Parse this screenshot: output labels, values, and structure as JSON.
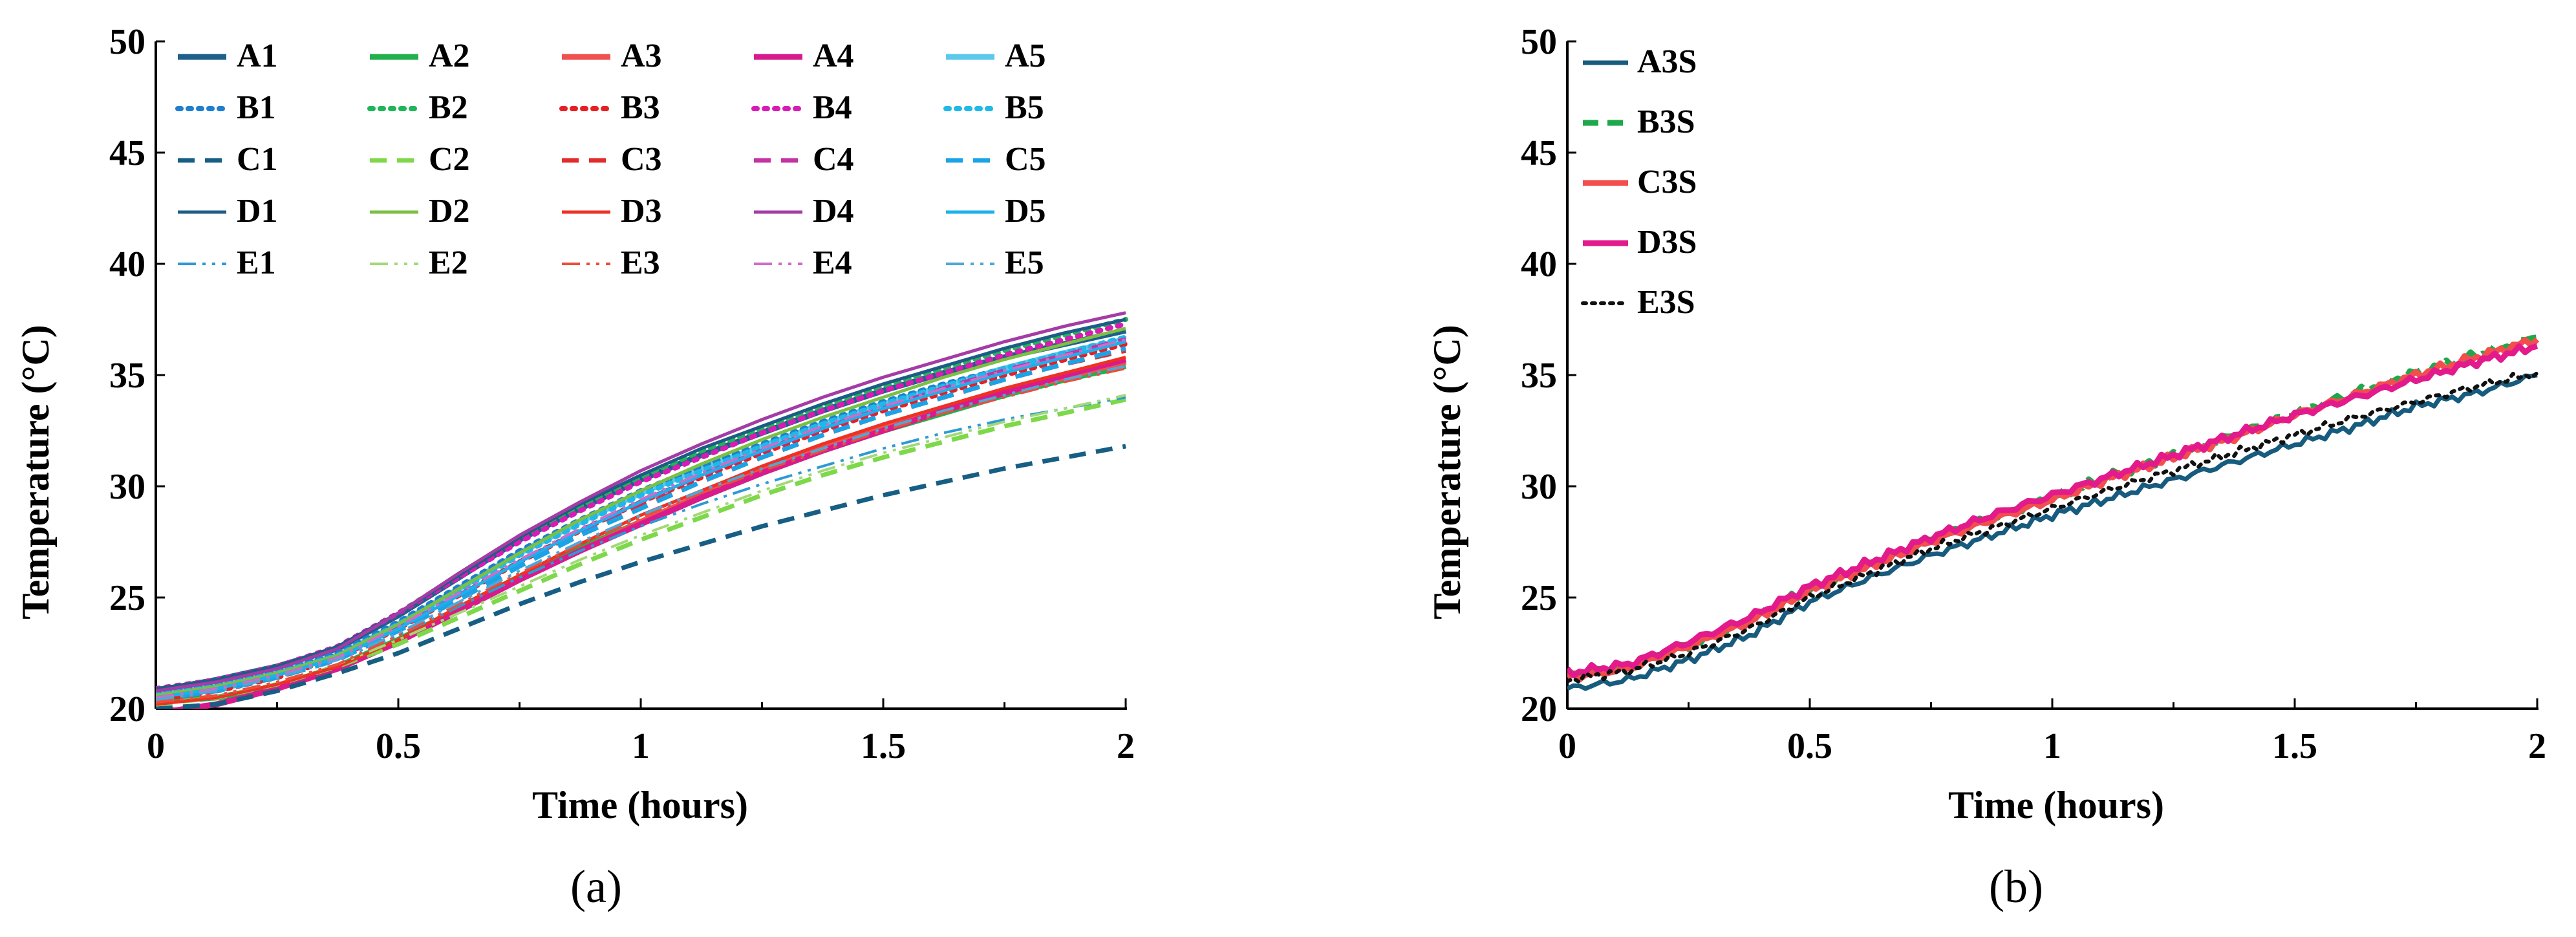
{
  "colors": {
    "A": [
      "#1F5F8B",
      "#22B04C",
      "#F0514E",
      "#D81B8C",
      "#5BC8EC"
    ],
    "B": [
      "#1E7FD0",
      "#1FB559",
      "#E81E25",
      "#D81BB5",
      "#1EB9E8"
    ],
    "C": [
      "#175E84",
      "#7DD84A",
      "#E32B2B",
      "#C432A3",
      "#1CA3E6"
    ],
    "D": [
      "#1E5C86",
      "#7BC043",
      "#EE3124",
      "#A43CA5",
      "#1AB2EA"
    ],
    "E": [
      "#2E9AD4",
      "#A2D977",
      "#EA4E3C",
      "#D06BC9",
      "#4EA8D8"
    ],
    "S": [
      "#175C7E",
      "#1FA84B",
      "#F24E4E",
      "#E31A8C",
      "#111111"
    ]
  },
  "panels": {
    "a": {
      "label": "(a)"
    },
    "b": {
      "label": "(b)"
    }
  },
  "chart_data": [
    {
      "type": "line",
      "panel": "a",
      "xlabel": "Time (hours)",
      "ylabel": "Temperature (°C)",
      "xlim": [
        0,
        2
      ],
      "ylim": [
        20,
        50
      ],
      "xticks": [
        0,
        0.5,
        1,
        1.5,
        2
      ],
      "xtick_labels": [
        "0",
        "0.5",
        "1",
        "1.5",
        "2"
      ],
      "yticks": [
        20,
        25,
        30,
        35,
        40,
        45,
        50
      ],
      "ytick_labels": [
        "20",
        "25",
        "30",
        "35",
        "40",
        "45",
        "50"
      ],
      "legend_position": "top-left",
      "x": [
        0,
        0.125,
        0.25,
        0.375,
        0.5,
        0.625,
        0.75,
        0.875,
        1,
        1.125,
        1.25,
        1.375,
        1.5,
        1.625,
        1.75,
        1.875,
        2
      ],
      "series": [
        {
          "name": "A1",
          "values": [
            20.8,
            21.3,
            21.9,
            22.7,
            24.2,
            25.9,
            27.6,
            29.0,
            30.3,
            31.4,
            32.4,
            33.4,
            34.3,
            35.1,
            35.8,
            36.4,
            37.0
          ]
        },
        {
          "name": "A2",
          "values": [
            20.3,
            20.5,
            21.0,
            21.9,
            23.1,
            24.5,
            25.9,
            27.2,
            28.4,
            29.5,
            30.6,
            31.6,
            32.5,
            33.3,
            34.1,
            34.8,
            35.4
          ]
        },
        {
          "name": "A3",
          "values": [
            19.8,
            20.2,
            20.9,
            21.8,
            23.0,
            24.4,
            25.8,
            27.1,
            28.4,
            29.6,
            30.7,
            31.7,
            32.6,
            33.4,
            34.2,
            34.9,
            35.6
          ]
        },
        {
          "name": "A4",
          "values": [
            19.8,
            20.2,
            20.9,
            21.8,
            23.0,
            24.4,
            25.8,
            27.1,
            28.3,
            29.5,
            30.6,
            31.6,
            32.5,
            33.4,
            34.2,
            35.0,
            35.7
          ]
        },
        {
          "name": "A5",
          "values": [
            20.6,
            21.0,
            21.6,
            22.4,
            23.8,
            25.4,
            27.0,
            28.4,
            29.7,
            30.8,
            31.8,
            32.8,
            33.7,
            34.5,
            35.3,
            36.0,
            36.6
          ]
        },
        {
          "name": "B1",
          "values": [
            20.7,
            21.1,
            21.7,
            22.5,
            23.9,
            25.5,
            27.1,
            28.5,
            29.8,
            30.9,
            31.9,
            32.9,
            33.8,
            34.6,
            35.3,
            36.0,
            36.7
          ]
        },
        {
          "name": "B2",
          "values": [
            20.9,
            21.3,
            21.9,
            22.8,
            24.3,
            26.0,
            27.7,
            29.1,
            30.4,
            31.6,
            32.6,
            33.6,
            34.5,
            35.3,
            36.1,
            36.8,
            37.5
          ]
        },
        {
          "name": "B3",
          "values": [
            20.4,
            20.8,
            21.4,
            22.3,
            23.6,
            25.1,
            26.6,
            28.0,
            29.3,
            30.4,
            31.5,
            32.5,
            33.4,
            34.2,
            35.0,
            35.7,
            36.4
          ]
        },
        {
          "name": "B4",
          "values": [
            20.9,
            21.3,
            21.9,
            22.8,
            24.3,
            25.9,
            27.5,
            28.9,
            30.2,
            31.3,
            32.4,
            33.4,
            34.3,
            35.1,
            35.9,
            36.6,
            37.3
          ]
        },
        {
          "name": "B5",
          "values": [
            20.6,
            21.0,
            21.6,
            22.4,
            23.8,
            25.3,
            26.9,
            28.3,
            29.6,
            30.7,
            31.8,
            32.8,
            33.7,
            34.5,
            35.3,
            36.0,
            36.7
          ]
        },
        {
          "name": "C1",
          "values": [
            20.0,
            20.2,
            20.8,
            21.6,
            22.5,
            23.6,
            24.7,
            25.7,
            26.6,
            27.4,
            28.2,
            28.9,
            29.6,
            30.2,
            30.8,
            31.3,
            31.8
          ]
        },
        {
          "name": "C2",
          "values": [
            20.2,
            20.5,
            21.1,
            21.9,
            22.9,
            24.1,
            25.3,
            26.5,
            27.6,
            28.6,
            29.6,
            30.5,
            31.3,
            32.0,
            32.7,
            33.3,
            33.9
          ]
        },
        {
          "name": "C3",
          "values": [
            20.4,
            20.8,
            21.4,
            22.2,
            23.5,
            25.0,
            26.5,
            27.9,
            29.1,
            30.2,
            31.3,
            32.3,
            33.2,
            34.0,
            34.8,
            35.5,
            36.1
          ]
        },
        {
          "name": "C4",
          "values": [
            20.5,
            20.9,
            21.5,
            22.3,
            23.6,
            25.1,
            26.6,
            28.0,
            29.3,
            30.5,
            31.6,
            32.6,
            33.5,
            34.4,
            35.2,
            35.9,
            36.6
          ]
        },
        {
          "name": "C5",
          "values": [
            20.4,
            20.8,
            21.4,
            22.2,
            23.5,
            24.9,
            26.4,
            27.8,
            29.0,
            30.2,
            31.3,
            32.3,
            33.2,
            34.0,
            34.8,
            35.5,
            36.2
          ]
        },
        {
          "name": "D1",
          "values": [
            20.9,
            21.3,
            21.9,
            22.8,
            24.3,
            26.0,
            27.7,
            29.2,
            30.5,
            31.7,
            32.7,
            33.7,
            34.6,
            35.4,
            36.2,
            36.9,
            37.5
          ]
        },
        {
          "name": "D2",
          "values": [
            20.6,
            21.0,
            21.6,
            22.4,
            23.8,
            25.4,
            27.0,
            28.5,
            29.8,
            31.0,
            32.1,
            33.1,
            34.0,
            34.9,
            35.7,
            36.4,
            37.1
          ]
        },
        {
          "name": "D3",
          "values": [
            20.2,
            20.5,
            21.1,
            21.9,
            23.1,
            24.6,
            26.0,
            27.4,
            28.7,
            29.8,
            30.9,
            31.9,
            32.8,
            33.6,
            34.4,
            35.1,
            35.8
          ]
        },
        {
          "name": "D4",
          "values": [
            20.8,
            21.2,
            21.8,
            22.7,
            24.3,
            26.1,
            27.8,
            29.3,
            30.7,
            31.9,
            33.0,
            34.0,
            34.9,
            35.7,
            36.5,
            37.2,
            37.8
          ]
        },
        {
          "name": "D5",
          "values": [
            20.5,
            20.9,
            21.5,
            22.3,
            23.6,
            25.1,
            26.6,
            28.0,
            29.3,
            30.5,
            31.6,
            32.6,
            33.5,
            34.3,
            35.1,
            35.8,
            36.5
          ]
        },
        {
          "name": "E1",
          "values": [
            20.4,
            20.8,
            21.4,
            22.2,
            23.3,
            24.6,
            25.9,
            27.1,
            28.2,
            29.2,
            30.1,
            30.9,
            31.7,
            32.4,
            33.0,
            33.5,
            34.0
          ]
        },
        {
          "name": "E2",
          "values": [
            20.3,
            20.6,
            21.2,
            22.0,
            23.1,
            24.3,
            25.5,
            26.7,
            27.8,
            28.8,
            29.8,
            30.7,
            31.5,
            32.2,
            32.9,
            33.5,
            34.1
          ]
        },
        {
          "name": "E3",
          "values": [
            20.3,
            20.6,
            21.2,
            22.0,
            23.3,
            24.7,
            26.1,
            27.4,
            28.6,
            29.7,
            30.7,
            31.6,
            32.5,
            33.3,
            34.0,
            34.7,
            35.3
          ]
        },
        {
          "name": "E4",
          "values": [
            20.5,
            20.9,
            21.5,
            22.3,
            23.7,
            25.2,
            26.7,
            28.1,
            29.4,
            30.6,
            31.7,
            32.7,
            33.6,
            34.4,
            35.2,
            35.9,
            36.6
          ]
        },
        {
          "name": "E5",
          "values": [
            20.4,
            20.8,
            21.4,
            22.2,
            23.4,
            24.8,
            26.2,
            27.5,
            28.7,
            29.8,
            30.8,
            31.7,
            32.6,
            33.4,
            34.1,
            34.8,
            35.4
          ]
        }
      ]
    },
    {
      "type": "line",
      "panel": "b",
      "xlabel": "Time (hours)",
      "ylabel": "Temperature (°C)",
      "xlim": [
        0,
        2
      ],
      "ylim": [
        20,
        50
      ],
      "xticks": [
        0,
        0.5,
        1,
        1.5,
        2
      ],
      "xtick_labels": [
        "0",
        "0.5",
        "1",
        "1.5",
        "2"
      ],
      "yticks": [
        20,
        25,
        30,
        35,
        40,
        45,
        50
      ],
      "ytick_labels": [
        "20",
        "25",
        "30",
        "35",
        "40",
        "45",
        "50"
      ],
      "legend_position": "top-left",
      "x": [
        0,
        0.125,
        0.25,
        0.375,
        0.5,
        0.625,
        0.75,
        0.875,
        1,
        1.125,
        1.25,
        1.375,
        1.5,
        1.625,
        1.75,
        1.875,
        2
      ],
      "series": [
        {
          "name": "A3S",
          "values": [
            20.9,
            21.3,
            22.2,
            23.3,
            24.8,
            25.9,
            26.9,
            27.8,
            28.7,
            29.5,
            30.3,
            31.1,
            31.9,
            32.7,
            33.6,
            34.2,
            35.0
          ]
        },
        {
          "name": "B3S",
          "values": [
            21.5,
            21.9,
            22.8,
            24.0,
            25.4,
            26.5,
            27.6,
            28.6,
            29.5,
            30.5,
            31.4,
            32.3,
            33.3,
            34.2,
            35.1,
            35.9,
            36.7
          ]
        },
        {
          "name": "C3S",
          "values": [
            21.4,
            21.8,
            22.8,
            23.9,
            25.3,
            26.4,
            27.5,
            28.5,
            29.4,
            30.4,
            31.3,
            32.2,
            33.2,
            34.1,
            35.0,
            35.8,
            36.6
          ]
        },
        {
          "name": "D3S",
          "values": [
            21.6,
            22.0,
            23.0,
            24.1,
            25.5,
            26.6,
            27.7,
            28.7,
            29.6,
            30.5,
            31.4,
            32.3,
            33.2,
            34.0,
            34.8,
            35.6,
            36.3
          ]
        },
        {
          "name": "E3S",
          "values": [
            21.3,
            21.7,
            22.5,
            23.6,
            25.0,
            26.1,
            27.2,
            28.1,
            29.0,
            29.9,
            30.7,
            31.5,
            32.3,
            33.1,
            33.8,
            34.5,
            35.1
          ]
        }
      ]
    }
  ]
}
